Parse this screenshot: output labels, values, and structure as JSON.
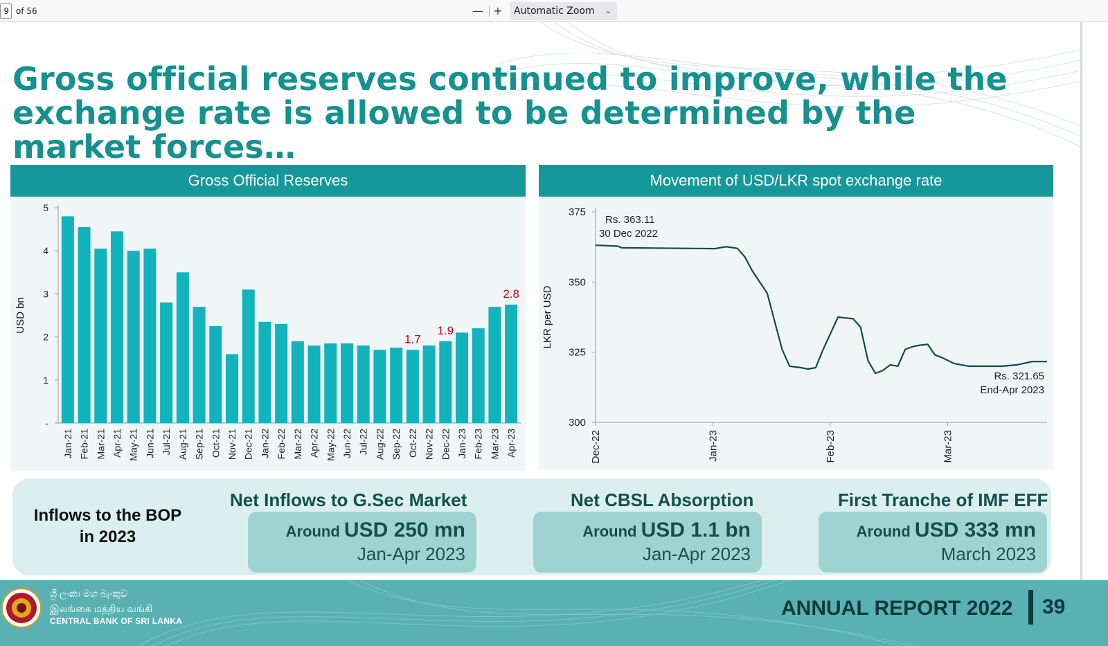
{
  "viewer": {
    "page_number": "9",
    "page_of": "of 56",
    "zoom_out": "—",
    "zoom_in": "+",
    "zoom_label": "Automatic Zoom",
    "zoom_chevron": "⌄"
  },
  "slide": {
    "headline": "Gross official reserves continued to improve, while the exchange rate is allowed to be determined by the market forces…",
    "colors": {
      "teal": "#16989a",
      "headline": "#16918f",
      "bar": "#11b3bd",
      "line": "#0e4b4b",
      "highlight": "#c00000"
    }
  },
  "chart_data": [
    {
      "type": "bar",
      "title": "Gross Official Reserves",
      "ylabel": "USD bn",
      "ylim": [
        0,
        5
      ],
      "yticks": [
        "-",
        "1",
        "2",
        "3",
        "4",
        "5"
      ],
      "grid": false,
      "categories": [
        "Jan-21",
        "Feb-21",
        "Mar-21",
        "Apr-21",
        "May-21",
        "Jun-21",
        "Jul-21",
        "Aug-21",
        "Sep-21",
        "Oct-21",
        "Nov-21",
        "Dec-21",
        "Jan-22",
        "Feb-22",
        "Mar-22",
        "Apr-22",
        "May-22",
        "Jun-22",
        "Jul-22",
        "Aug-22",
        "Sep-22",
        "Oct-22",
        "Nov-22",
        "Dec-22",
        "Jan-23",
        "Feb-23",
        "Mar-23",
        "Apr-23"
      ],
      "values": [
        4.8,
        4.55,
        4.05,
        4.45,
        4.0,
        4.05,
        2.8,
        3.5,
        2.7,
        2.25,
        1.6,
        3.1,
        2.35,
        2.3,
        1.9,
        1.8,
        1.85,
        1.85,
        1.8,
        1.7,
        1.75,
        1.7,
        1.8,
        1.9,
        2.1,
        2.2,
        2.7,
        2.75
      ],
      "data_labels": [
        {
          "category": "Oct-22",
          "text": "1.7"
        },
        {
          "category": "Dec-22",
          "text": "1.9"
        },
        {
          "category": "Apr-23",
          "text": "2.8"
        }
      ]
    },
    {
      "type": "line",
      "title": "Movement of USD/LKR spot exchange rate",
      "ylabel": "LKR per USD",
      "ylim": [
        300,
        375
      ],
      "yticks": [
        "300",
        "325",
        "350",
        "375"
      ],
      "xticks": [
        "Dec-22",
        "Jan-23",
        "Feb-23",
        "Mar-23"
      ],
      "xrange": [
        "2022-12-30",
        "2023-04-30"
      ],
      "grid": false,
      "x": [
        "2022-12-30",
        "2023-01-05",
        "2023-01-06",
        "2023-01-15",
        "2023-01-31",
        "2023-02-03",
        "2023-02-06",
        "2023-02-08",
        "2023-02-10",
        "2023-02-14",
        "2023-02-16",
        "2023-02-18",
        "2023-02-20",
        "2023-02-23",
        "2023-02-25",
        "2023-02-27",
        "2023-03-01",
        "2023-03-05",
        "2023-03-07",
        "2023-03-09",
        "2023-03-11",
        "2023-03-13",
        "2023-03-15",
        "2023-03-17",
        "2023-03-19",
        "2023-03-21",
        "2023-03-23",
        "2023-03-25",
        "2023-03-27",
        "2023-03-29",
        "2023-03-31",
        "2023-04-02",
        "2023-04-05",
        "2023-04-09",
        "2023-04-13",
        "2023-04-18",
        "2023-04-22",
        "2023-04-26",
        "2023-04-30"
      ],
      "y": [
        363.11,
        362.8,
        362.2,
        362.1,
        361.9,
        362.6,
        362.0,
        359.0,
        354.0,
        346.0,
        336.0,
        326.0,
        320.0,
        319.5,
        319.0,
        319.5,
        326.0,
        337.5,
        337.2,
        336.9,
        334.0,
        322.0,
        317.5,
        318.5,
        320.5,
        320.0,
        326.0,
        327.0,
        327.5,
        327.8,
        324.0,
        323.0,
        321.0,
        320.0,
        320.0,
        320.0,
        320.5,
        321.65,
        321.65
      ],
      "annotations": [
        {
          "line1": "Rs. 363.11",
          "line2": "30 Dec 2022"
        },
        {
          "line1": "Rs. 321.65",
          "line2": "End-Apr 2023"
        }
      ]
    }
  ],
  "info": {
    "title_line1": "Inflows to the BOP",
    "title_line2": "in 2023",
    "cards": [
      {
        "heading": "Net Inflows to G.Sec Market",
        "prefix": "Around ",
        "amount": "USD 250 mn",
        "period": "Jan-Apr 2023"
      },
      {
        "heading": "Net CBSL Absorption",
        "prefix": "Around ",
        "amount": "USD 1.1 bn",
        "period": "Jan-Apr 2023"
      },
      {
        "heading": "First Tranche of IMF EFF",
        "prefix": "Around ",
        "amount": "USD 333 mn",
        "period": "March 2023"
      }
    ]
  },
  "footer": {
    "bank_sinhala": "ශ්‍රී ලංකා මහ බැංකුව",
    "bank_tamil": "இலங்கை மத்திய வங்கி",
    "bank_english": "CENTRAL BANK OF SRI LANKA",
    "report_title": "ANNUAL REPORT 2022",
    "page_number": "39"
  }
}
